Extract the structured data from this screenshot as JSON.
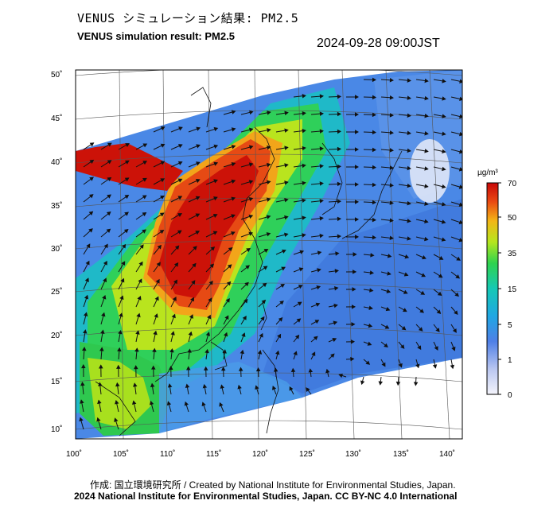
{
  "title_jp": "VENUS シミュレーション結果: PM2.5",
  "title_en": "VENUS simulation result: PM2.5",
  "datetime": "2024-09-28 09:00JST",
  "credit": "作成: 国立環境研究所 / Created by National Institute for Environmental Studies, Japan.",
  "license": "2024 National Institute for Environmental Studies, Japan. CC BY-NC 4.0 International",
  "map": {
    "lat_labels": [
      "50˚",
      "45˚",
      "40˚",
      "35˚",
      "30˚",
      "25˚",
      "20˚",
      "15˚",
      "10˚"
    ],
    "lon_labels": [
      "100˚",
      "105˚",
      "110˚",
      "115˚",
      "120˚",
      "125˚",
      "130˚",
      "135˚",
      "140˚"
    ]
  },
  "colorbar": {
    "unit": "µg/m³",
    "ticks": [
      "70",
      "50",
      "35",
      "15",
      "5",
      "1",
      "0"
    ],
    "colors": [
      "#e8e8f4",
      "#5a7ee6",
      "#2f9de6",
      "#14c6cf",
      "#2fd35a",
      "#b7e61e",
      "#f5b319",
      "#ee4a13",
      "#cc0808"
    ]
  },
  "palette": {
    "low": "#4a88e6",
    "mid": "#27c96b",
    "high": "#e0321a",
    "background": "#ffffff"
  }
}
